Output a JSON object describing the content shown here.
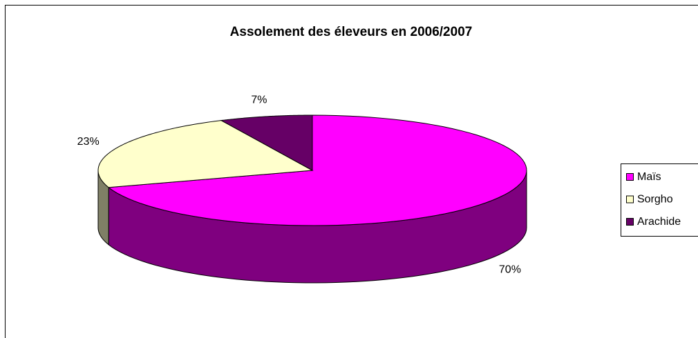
{
  "chart_data": {
    "type": "pie",
    "title": "Assolement des éleveurs en 2006/2007",
    "categories": [
      "Maïs",
      "Sorgho",
      "Arachide"
    ],
    "values": [
      70,
      23,
      7
    ],
    "value_labels": [
      "70%",
      "23%",
      "7%"
    ],
    "colors": [
      "#ff00ff",
      "#ffffcc",
      "#660066"
    ],
    "legend": "right"
  }
}
